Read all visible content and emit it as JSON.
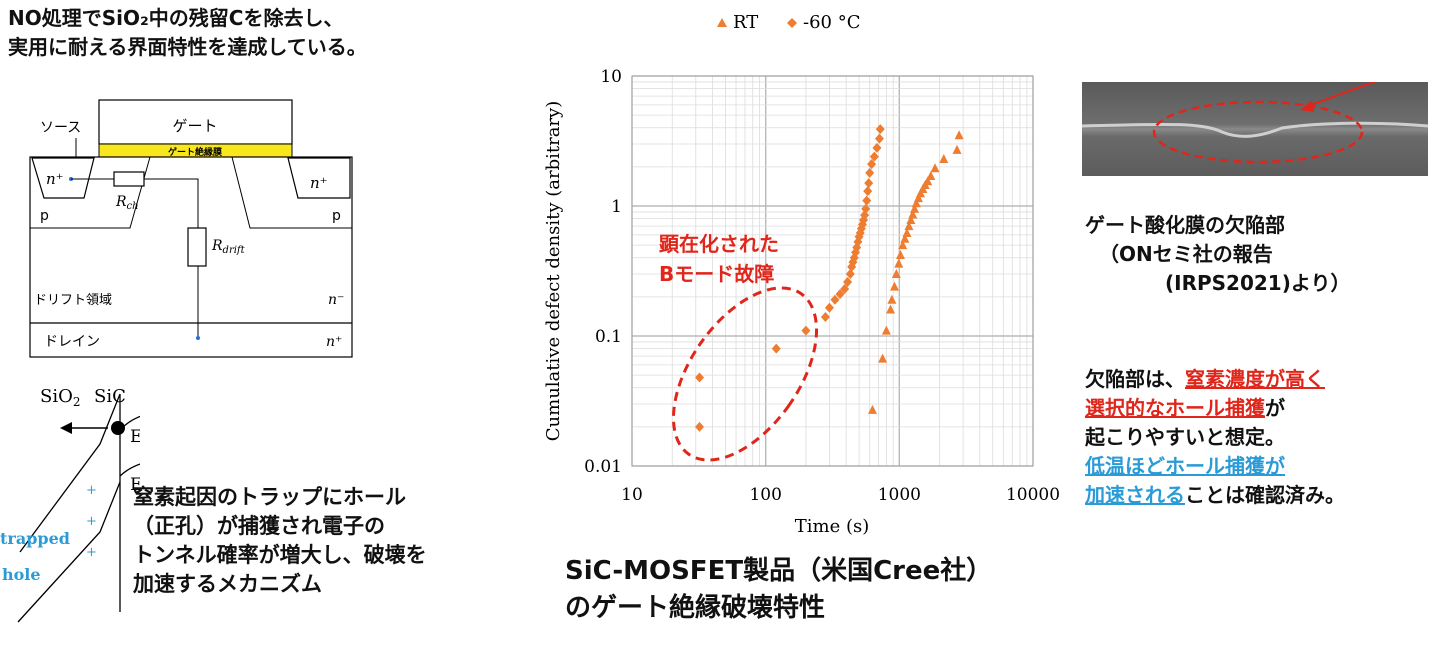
{
  "heading": {
    "line1": "NO処理でSiO₂中の残留Cを除去し、",
    "line2": "実用に耐える界面特性を達成している。"
  },
  "mosfet": {
    "source": "ソース",
    "gate": "ゲート",
    "gate_insulator": "ゲート絶縁膜",
    "n_plus_left": "n⁺",
    "n_plus_right": "n⁺",
    "p_left": "p",
    "p_right": "p",
    "r_ch": "R",
    "r_ch_sub": "ch",
    "r_drift": "R",
    "r_drift_sub": "drift",
    "drift_region": "ドリフト領域",
    "n_minus": "n⁻",
    "drain": "ドレイン",
    "n_plus_drain": "n⁺"
  },
  "band": {
    "sio2": "SiO",
    "sio2_sub": "2",
    "sic": "SiC",
    "ec": "E",
    "ec_sub": "C",
    "ev": "E",
    "ev_sub": "V",
    "trapped": "trapped",
    "hole": "hole",
    "plus": "+"
  },
  "mechanism": {
    "lines": [
      "窒素起因のトラップにホール",
      "（正孔）が捕獲され電子の",
      "トンネル確率が増大し、破壊を",
      "加速するメカニズム"
    ]
  },
  "chart_data": {
    "type": "scatter",
    "title": "",
    "xlabel": "Time (s)",
    "ylabel": "Cumulative defect density (arbitrary)",
    "x_scale": "log",
    "y_scale": "log",
    "xlim": [
      10,
      10000
    ],
    "ylim": [
      0.01,
      10
    ],
    "x_ticks": [
      "10",
      "100",
      "1000",
      "10000"
    ],
    "y_ticks": [
      "10",
      "1",
      "0.1",
      "0.01"
    ],
    "grid": true,
    "legend_position": "top",
    "marker_color": "#ED7D31",
    "series": [
      {
        "name": "RT",
        "marker": "triangle",
        "points": [
          [
            630,
            0.027
          ],
          [
            750,
            0.067
          ],
          [
            800,
            0.11
          ],
          [
            860,
            0.16
          ],
          [
            880,
            0.19
          ],
          [
            920,
            0.24
          ],
          [
            950,
            0.3
          ],
          [
            990,
            0.36
          ],
          [
            1020,
            0.42
          ],
          [
            1060,
            0.5
          ],
          [
            1100,
            0.56
          ],
          [
            1140,
            0.62
          ],
          [
            1180,
            0.7
          ],
          [
            1220,
            0.78
          ],
          [
            1260,
            0.86
          ],
          [
            1300,
            0.95
          ],
          [
            1340,
            1.05
          ],
          [
            1390,
            1.15
          ],
          [
            1440,
            1.25
          ],
          [
            1500,
            1.35
          ],
          [
            1560,
            1.45
          ],
          [
            1630,
            1.55
          ],
          [
            1720,
            1.7
          ],
          [
            1850,
            1.95
          ],
          [
            2150,
            2.3
          ],
          [
            2700,
            2.7
          ],
          [
            2800,
            3.5
          ]
        ]
      },
      {
        "name": "-60 °C",
        "marker": "diamond",
        "points": [
          [
            32,
            0.02
          ],
          [
            32,
            0.048
          ],
          [
            120,
            0.08
          ],
          [
            200,
            0.11
          ],
          [
            280,
            0.14
          ],
          [
            300,
            0.165
          ],
          [
            330,
            0.19
          ],
          [
            360,
            0.21
          ],
          [
            390,
            0.23
          ],
          [
            410,
            0.26
          ],
          [
            430,
            0.3
          ],
          [
            440,
            0.34
          ],
          [
            450,
            0.37
          ],
          [
            460,
            0.4
          ],
          [
            470,
            0.44
          ],
          [
            480,
            0.48
          ],
          [
            490,
            0.53
          ],
          [
            500,
            0.58
          ],
          [
            510,
            0.62
          ],
          [
            520,
            0.67
          ],
          [
            530,
            0.72
          ],
          [
            540,
            0.78
          ],
          [
            550,
            0.85
          ],
          [
            560,
            0.95
          ],
          [
            570,
            1.1
          ],
          [
            580,
            1.3
          ],
          [
            590,
            1.5
          ],
          [
            600,
            1.8
          ],
          [
            620,
            2.1
          ],
          [
            650,
            2.4
          ],
          [
            680,
            2.8
          ],
          [
            710,
            3.3
          ],
          [
            720,
            3.9
          ]
        ]
      }
    ],
    "annotation": {
      "line1": "顕在化された",
      "line2": "Bモード故障",
      "color": "#e0261b"
    }
  },
  "chart_caption": {
    "line1": "SiC-MOSFET製品（米国Cree社）",
    "line2": "のゲート絶縁破壊特性"
  },
  "sem_caption": {
    "line1": "ゲート酸化膜の欠陥部",
    "line2": "（ONセミ社の報告",
    "line3": "(IRPS2021)より）"
  },
  "defect_note": {
    "line1_a": "欠陥部は、",
    "line1_b": "窒素濃度が高く",
    "line2_a": "選択的なホール捕獲",
    "line2_b": "が",
    "line3": "起こりやすいと想定。",
    "line4": "低温ほどホール捕獲が",
    "line5_a": "加速される",
    "line5_b": "ことは確認済み。"
  }
}
